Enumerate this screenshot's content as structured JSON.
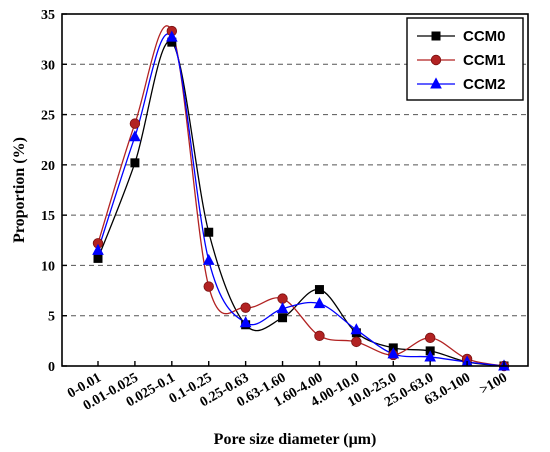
{
  "chart_data": {
    "type": "line",
    "title": "",
    "xlabel": "Pore size diameter (μm)",
    "ylabel": "Proportion (%)",
    "categories": [
      "0-0.01",
      "0.01-0.025",
      "0.025-0.1",
      "0.1-0.25",
      "0.25-0.63",
      "0.63-1.60",
      "1.60-4.00",
      "4.00-10.0",
      "10.0-25.0",
      "25.0-63.0",
      "63.0-100",
      ">100"
    ],
    "ylim": [
      0,
      35
    ],
    "yticks": [
      "0",
      "5",
      "10",
      "15",
      "20",
      "25",
      "30",
      "35"
    ],
    "grid": "horizontal dashed",
    "legend_position": "top-right",
    "smooth": true,
    "series": [
      {
        "name": "CCM0",
        "color": "#000000",
        "marker": "square",
        "values": [
          10.7,
          20.2,
          32.2,
          13.3,
          4.1,
          4.8,
          7.6,
          3.3,
          1.8,
          1.5,
          0.4,
          0.0
        ]
      },
      {
        "name": "CCM1",
        "color": "#b22222",
        "marker": "circle",
        "values": [
          12.2,
          24.1,
          33.3,
          7.9,
          5.8,
          6.7,
          3.0,
          2.4,
          1.1,
          2.8,
          0.7,
          0.0
        ]
      },
      {
        "name": "CCM2",
        "color": "#0000ff",
        "marker": "triangle",
        "values": [
          11.5,
          22.8,
          32.7,
          10.5,
          4.3,
          5.7,
          6.2,
          3.6,
          1.2,
          0.9,
          0.4,
          0.0
        ]
      }
    ]
  }
}
